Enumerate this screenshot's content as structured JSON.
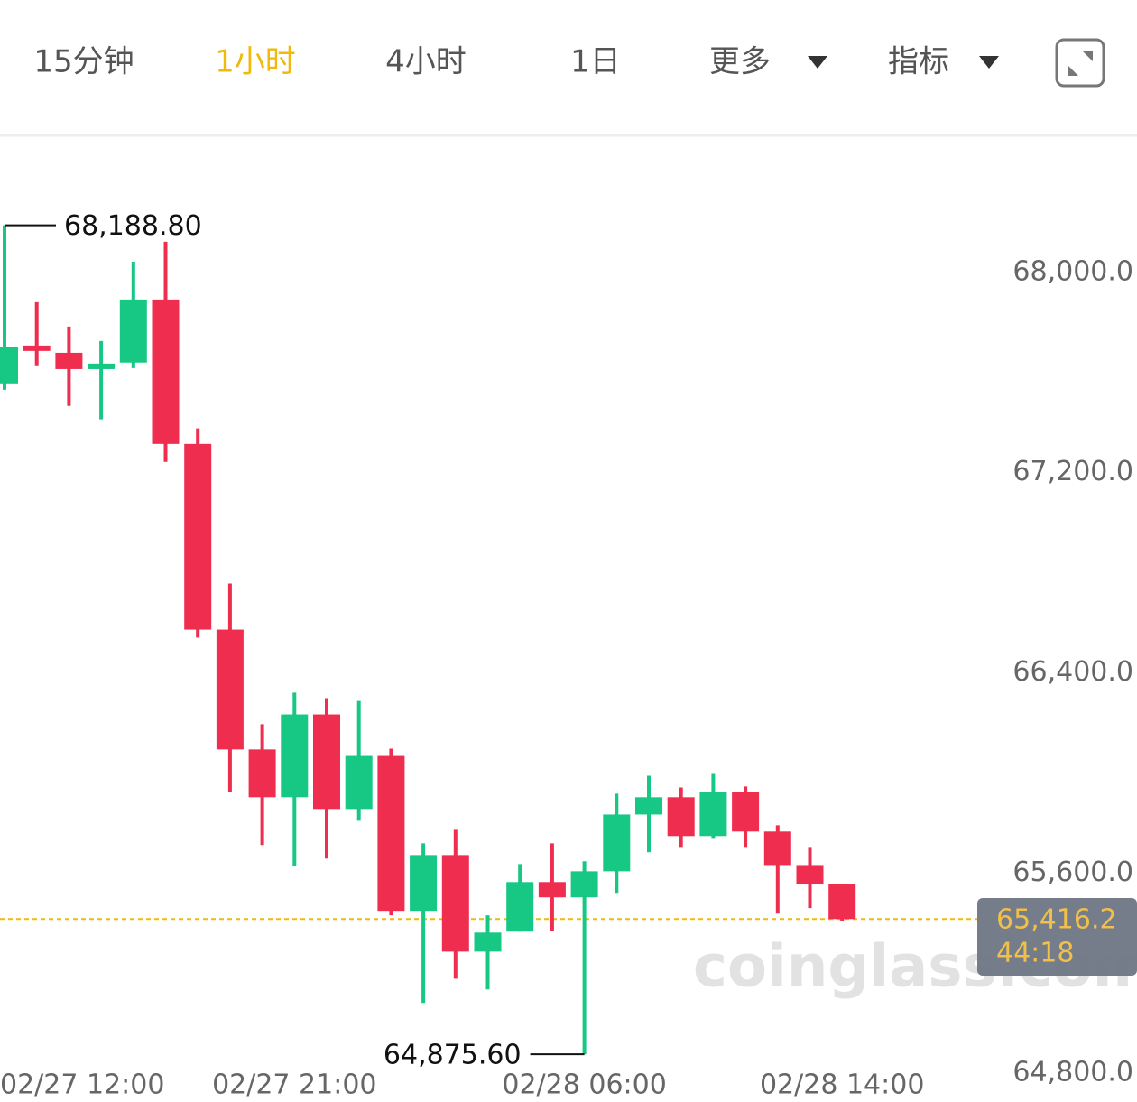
{
  "toolbar": {
    "tabs": [
      "15分钟",
      "1小时",
      "4小时",
      "1日",
      "更多",
      "指标"
    ],
    "active_tab": 1
  },
  "chart_data": {
    "type": "candlestick",
    "categories": [
      "02/27 12:00",
      null,
      null,
      null,
      null,
      null,
      null,
      null,
      null,
      "02/27 21:00",
      null,
      null,
      null,
      null,
      null,
      null,
      null,
      null,
      "02/28 06:00",
      null,
      null,
      null,
      null,
      null,
      null,
      null,
      "02/28 14:00"
    ],
    "open": [
      67556.8,
      67708,
      67679,
      67614,
      67640,
      67892,
      67315,
      66573,
      66094,
      65903,
      66234,
      65856,
      66068,
      65449,
      65672,
      65286,
      65366,
      65564,
      65503,
      65607,
      65834,
      65903,
      65748,
      65924,
      65766,
      65632,
      65557
    ],
    "high": [
      68188.8,
      67881,
      67784,
      67726,
      68043,
      68123,
      67377,
      66757,
      66195,
      66321,
      66299,
      66288,
      66097,
      65719,
      65773,
      65431,
      65636,
      65719,
      65647,
      65917,
      65989,
      65942,
      65996,
      65946,
      65791,
      65701,
      65557
    ],
    "low": [
      67531.5,
      67629,
      67467,
      67413,
      67618,
      67243,
      66541,
      65924,
      65712,
      65629,
      65658,
      65809,
      65431,
      65081,
      65178,
      65135,
      65366,
      65369,
      64875.6,
      65521,
      65683,
      65701,
      65737,
      65701,
      65438,
      65460,
      65409
    ],
    "close": [
      67700.9,
      67686.5,
      67614,
      67636,
      67892,
      67315,
      66573,
      66094,
      65903,
      66234,
      65856,
      66068,
      65449,
      65672,
      65286,
      65362,
      65564,
      65503,
      65607,
      65834,
      65903,
      65748,
      65924,
      65766,
      65632,
      65557,
      65416.2
    ],
    "up_color": "#17c784",
    "down_color": "#ef2d4f",
    "ylim": [
      64685,
      68548
    ],
    "yticks": [
      {
        "value": 68000,
        "label": "68,000.0"
      },
      {
        "value": 67200,
        "label": "67,200.0"
      },
      {
        "value": 66400,
        "label": "66,400.0"
      },
      {
        "value": 65600,
        "label": "65,600.0"
      },
      {
        "value": 64800,
        "label": "64,800.0"
      }
    ],
    "annotations": [
      {
        "value": 68188.8,
        "label": "68,188.80"
      },
      {
        "value": 64875.6,
        "label": "64,875.60"
      }
    ],
    "last_price": {
      "value": 65416.2,
      "label": "65,416.2"
    },
    "countdown": "44:18",
    "watermark": "coinglass.com"
  }
}
